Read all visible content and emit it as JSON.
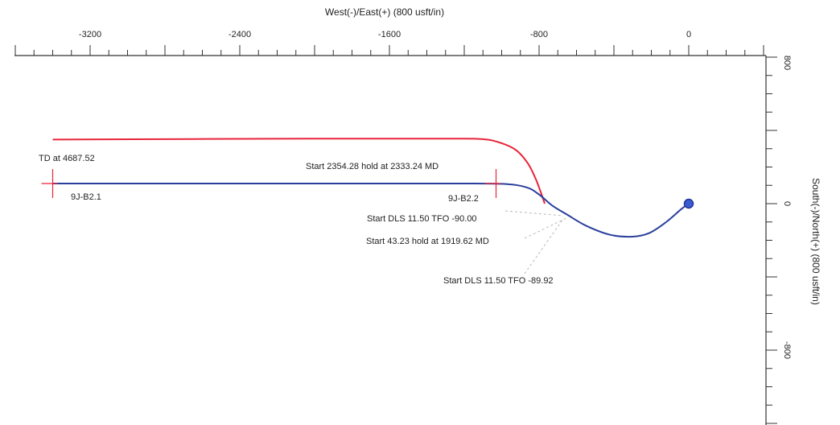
{
  "chart_data": {
    "type": "line",
    "xlabel": "West(-)/East(+) (800 usft/in)",
    "ylabel": "South(-)/North(+) (800 usft/in)",
    "x_ticks": [
      -3200,
      -2400,
      -1600,
      -800,
      0
    ],
    "y_ticks": [
      800,
      0,
      -800
    ],
    "xlim": [
      -3600,
      400
    ],
    "ylim": [
      -1170,
      860
    ],
    "series": [
      {
        "color": "#e8253a",
        "x": [
          -3400,
          -2000,
          -1300,
          -1100,
          -1000,
          -920,
          -860,
          -820,
          -790,
          -770
        ],
        "y": [
          350,
          355,
          355,
          352,
          330,
          290,
          220,
          140,
          60,
          0
        ]
      },
      {
        "color": "#2a3f9c",
        "x": [
          -3400,
          -2000,
          -1300,
          -1000,
          -870,
          -800,
          -730,
          -650,
          -550,
          -420,
          -300,
          -210,
          -120,
          -40,
          0
        ],
        "y": [
          110,
          110,
          110,
          108,
          90,
          50,
          -10,
          -60,
          -120,
          -170,
          -180,
          -160,
          -100,
          -30,
          0
        ]
      }
    ],
    "annotations": [
      {
        "text": "TD at 4687.52",
        "x": -3400,
        "y": 110
      },
      {
        "text": "9J-B2.1",
        "x": -3400,
        "y": 110
      },
      {
        "text": "Start 2354.28 hold at 2333.24 MD",
        "x": -1030,
        "y": 110
      },
      {
        "text": "9J-B2.2",
        "x": -1030,
        "y": 110
      },
      {
        "text": "Start DLS 11.50 TFO -90.00",
        "x": -860,
        "y": 40
      },
      {
        "text": "Start 43.23 hold at 1919.62 MD",
        "x": -800,
        "y": -10
      },
      {
        "text": "Start DLS 11.50 TFO -89.92",
        "x": -760,
        "y": -70
      }
    ],
    "start_marker": {
      "x": 0,
      "y": 0,
      "color": "#3b5bd1"
    },
    "grid": false,
    "legend": "none"
  }
}
